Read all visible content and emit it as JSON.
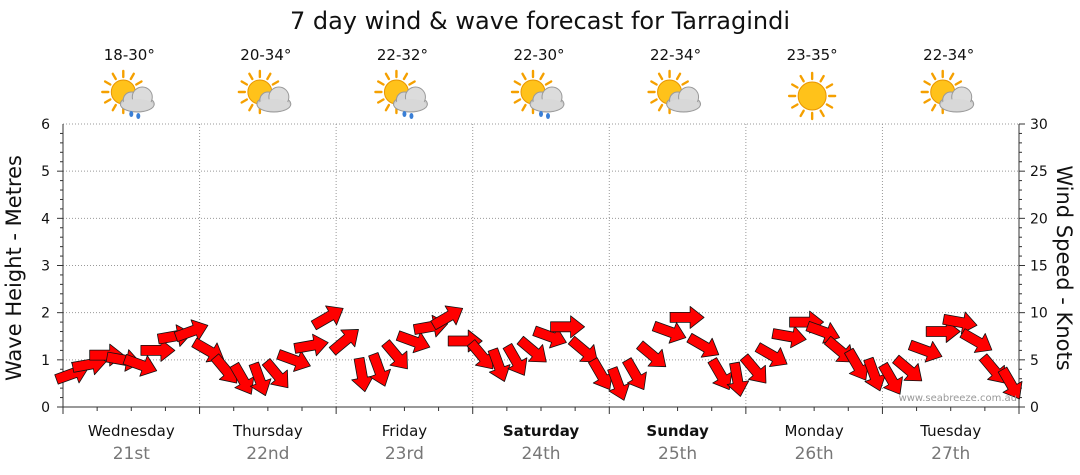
{
  "chart_data": {
    "type": "line",
    "title": "7 day wind & wave forecast for Tarragindi",
    "ylabel_left": "Wave Height - Metres",
    "ylabel_right": "Wind Speed - Knots",
    "ylim_left": [
      0,
      6
    ],
    "ylim_right": [
      0,
      30
    ],
    "yticks_left": [
      "0",
      "1",
      "2",
      "3",
      "4",
      "5",
      "6"
    ],
    "yticks_right": [
      "0",
      "5",
      "10",
      "15",
      "20",
      "25",
      "30"
    ],
    "grid": true,
    "watermark": "www.seabreeze.com.au",
    "days": [
      {
        "name": "Wednesday",
        "date": "21st",
        "temp": "18-30°",
        "icon": "sun-cloud-rain-icon",
        "bold": false
      },
      {
        "name": "Thursday",
        "date": "22nd",
        "temp": "20-34°",
        "icon": "sun-cloud-icon",
        "bold": false
      },
      {
        "name": "Friday",
        "date": "23rd",
        "temp": "22-32°",
        "icon": "sun-cloud-rain-icon",
        "bold": false
      },
      {
        "name": "Saturday",
        "date": "24th",
        "temp": "22-30°",
        "icon": "sun-cloud-rain-icon",
        "bold": true
      },
      {
        "name": "Sunday",
        "date": "25th",
        "temp": "22-34°",
        "icon": "sun-cloud-icon",
        "bold": true
      },
      {
        "name": "Monday",
        "date": "26th",
        "temp": "23-35°",
        "icon": "sun-icon",
        "bold": false
      },
      {
        "name": "Tuesday",
        "date": "27th",
        "temp": "22-34°",
        "icon": "sun-cloud-icon",
        "bold": false
      }
    ],
    "series": [
      {
        "type": "wind-arrows",
        "unit": "knots",
        "color": "#ff0000",
        "points_per_day": 8,
        "speed": [
          3.5,
          4.5,
          5.5,
          5,
          4.5,
          6,
          7.5,
          8,
          6,
          4,
          3,
          3,
          3.5,
          5,
          6.5,
          9.5,
          7,
          3.5,
          4,
          5.5,
          7,
          8.5,
          9.5,
          7,
          5.5,
          4.5,
          5,
          6,
          7.5,
          8.5,
          6,
          3.5,
          2.5,
          3.5,
          5.5,
          8,
          9.5,
          6.5,
          3.5,
          3,
          4,
          5.5,
          7.5,
          9,
          8,
          6,
          4.5,
          3.5,
          3,
          4,
          6,
          8,
          9,
          7,
          4,
          2.5
        ],
        "direction_deg": [
          70,
          80,
          90,
          100,
          110,
          90,
          80,
          70,
          120,
          140,
          150,
          160,
          140,
          110,
          80,
          60,
          50,
          170,
          160,
          140,
          110,
          80,
          60,
          90,
          140,
          160,
          150,
          130,
          110,
          90,
          130,
          150,
          160,
          150,
          130,
          110,
          90,
          120,
          150,
          170,
          140,
          120,
          100,
          90,
          110,
          130,
          150,
          160,
          150,
          130,
          110,
          90,
          100,
          120,
          140,
          150
        ]
      }
    ]
  }
}
